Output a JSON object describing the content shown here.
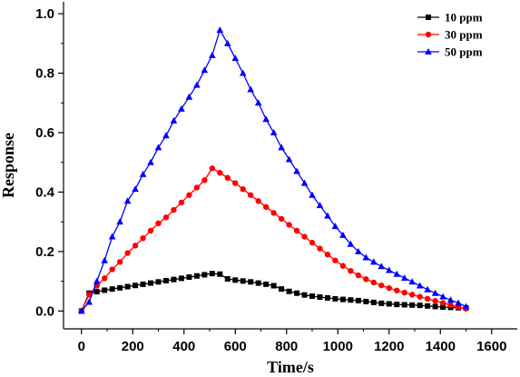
{
  "chart_data": {
    "type": "line",
    "title": "",
    "xlabel": "Time/s",
    "ylabel": "Response",
    "xlim": [
      -70,
      1700
    ],
    "ylim": [
      -0.06,
      1.04
    ],
    "x_ticks": [
      0,
      200,
      400,
      600,
      800,
      1000,
      1200,
      1400,
      1600
    ],
    "x_tick_labels": [
      "0",
      "200",
      "400",
      "600",
      "800",
      "1000",
      "1200",
      "1400",
      "1600"
    ],
    "y_ticks": [
      0.0,
      0.2,
      0.4,
      0.6,
      0.8,
      1.0
    ],
    "y_tick_labels": [
      "0.0",
      "0.2",
      "0.4",
      "0.6",
      "0.8",
      "1.0"
    ],
    "grid": false,
    "legend_position": "top-right",
    "series": [
      {
        "name": "10 ppm",
        "color": "#000000",
        "marker": "square",
        "points": [
          [
            0,
            0
          ],
          [
            30,
            0.06
          ],
          [
            60,
            0.065
          ],
          [
            90,
            0.07
          ],
          [
            120,
            0.074
          ],
          [
            150,
            0.078
          ],
          [
            180,
            0.082
          ],
          [
            210,
            0.086
          ],
          [
            240,
            0.09
          ],
          [
            270,
            0.094
          ],
          [
            300,
            0.098
          ],
          [
            330,
            0.102
          ],
          [
            360,
            0.106
          ],
          [
            390,
            0.11
          ],
          [
            420,
            0.114
          ],
          [
            450,
            0.118
          ],
          [
            480,
            0.122
          ],
          [
            510,
            0.126
          ],
          [
            540,
            0.124
          ],
          [
            570,
            0.108
          ],
          [
            600,
            0.104
          ],
          [
            630,
            0.101
          ],
          [
            660,
            0.098
          ],
          [
            690,
            0.094
          ],
          [
            720,
            0.09
          ],
          [
            750,
            0.085
          ],
          [
            780,
            0.074
          ],
          [
            810,
            0.066
          ],
          [
            840,
            0.06
          ],
          [
            870,
            0.054
          ],
          [
            900,
            0.05
          ],
          [
            930,
            0.047
          ],
          [
            960,
            0.044
          ],
          [
            990,
            0.041
          ],
          [
            1020,
            0.039
          ],
          [
            1050,
            0.037
          ],
          [
            1080,
            0.035
          ],
          [
            1110,
            0.032
          ],
          [
            1140,
            0.029
          ],
          [
            1170,
            0.026
          ],
          [
            1200,
            0.024
          ],
          [
            1230,
            0.022
          ],
          [
            1260,
            0.021
          ],
          [
            1290,
            0.02
          ],
          [
            1320,
            0.019
          ],
          [
            1350,
            0.017
          ],
          [
            1380,
            0.015
          ],
          [
            1410,
            0.013
          ],
          [
            1440,
            0.012
          ],
          [
            1470,
            0.011
          ],
          [
            1500,
            0.01
          ]
        ]
      },
      {
        "name": "30 ppm",
        "color": "#ff0000",
        "marker": "circle",
        "points": [
          [
            0,
            0
          ],
          [
            30,
            0.055
          ],
          [
            60,
            0.085
          ],
          [
            90,
            0.11
          ],
          [
            120,
            0.14
          ],
          [
            150,
            0.165
          ],
          [
            180,
            0.195
          ],
          [
            210,
            0.22
          ],
          [
            240,
            0.245
          ],
          [
            270,
            0.27
          ],
          [
            300,
            0.295
          ],
          [
            330,
            0.315
          ],
          [
            360,
            0.34
          ],
          [
            390,
            0.365
          ],
          [
            420,
            0.39
          ],
          [
            450,
            0.415
          ],
          [
            480,
            0.44
          ],
          [
            510,
            0.48
          ],
          [
            540,
            0.465
          ],
          [
            570,
            0.448
          ],
          [
            600,
            0.43
          ],
          [
            630,
            0.41
          ],
          [
            660,
            0.39
          ],
          [
            690,
            0.37
          ],
          [
            720,
            0.35
          ],
          [
            750,
            0.33
          ],
          [
            780,
            0.31
          ],
          [
            810,
            0.29
          ],
          [
            840,
            0.27
          ],
          [
            870,
            0.25
          ],
          [
            900,
            0.23
          ],
          [
            930,
            0.21
          ],
          [
            960,
            0.19
          ],
          [
            990,
            0.17
          ],
          [
            1020,
            0.152
          ],
          [
            1050,
            0.135
          ],
          [
            1080,
            0.12
          ],
          [
            1110,
            0.107
          ],
          [
            1140,
            0.096
          ],
          [
            1170,
            0.086
          ],
          [
            1200,
            0.077
          ],
          [
            1230,
            0.069
          ],
          [
            1260,
            0.062
          ],
          [
            1290,
            0.055
          ],
          [
            1320,
            0.048
          ],
          [
            1350,
            0.041
          ],
          [
            1380,
            0.034
          ],
          [
            1410,
            0.027
          ],
          [
            1440,
            0.02
          ],
          [
            1470,
            0.013
          ],
          [
            1500,
            0.008
          ]
        ]
      },
      {
        "name": "50 ppm",
        "color": "#0000ff",
        "marker": "triangle",
        "points": [
          [
            0,
            0
          ],
          [
            30,
            0.03
          ],
          [
            60,
            0.1
          ],
          [
            90,
            0.17
          ],
          [
            120,
            0.25
          ],
          [
            150,
            0.3
          ],
          [
            180,
            0.37
          ],
          [
            210,
            0.41
          ],
          [
            240,
            0.46
          ],
          [
            270,
            0.5
          ],
          [
            300,
            0.55
          ],
          [
            330,
            0.59
          ],
          [
            360,
            0.64
          ],
          [
            390,
            0.68
          ],
          [
            420,
            0.72
          ],
          [
            450,
            0.76
          ],
          [
            480,
            0.81
          ],
          [
            510,
            0.86
          ],
          [
            540,
            0.945
          ],
          [
            570,
            0.9
          ],
          [
            600,
            0.85
          ],
          [
            630,
            0.8
          ],
          [
            660,
            0.745
          ],
          [
            690,
            0.7
          ],
          [
            720,
            0.645
          ],
          [
            750,
            0.6
          ],
          [
            780,
            0.55
          ],
          [
            810,
            0.51
          ],
          [
            840,
            0.47
          ],
          [
            870,
            0.43
          ],
          [
            900,
            0.39
          ],
          [
            930,
            0.355
          ],
          [
            960,
            0.32
          ],
          [
            990,
            0.285
          ],
          [
            1020,
            0.255
          ],
          [
            1050,
            0.225
          ],
          [
            1080,
            0.2
          ],
          [
            1110,
            0.18
          ],
          [
            1140,
            0.165
          ],
          [
            1170,
            0.15
          ],
          [
            1200,
            0.137
          ],
          [
            1230,
            0.124
          ],
          [
            1260,
            0.111
          ],
          [
            1290,
            0.098
          ],
          [
            1320,
            0.085
          ],
          [
            1350,
            0.072
          ],
          [
            1380,
            0.06
          ],
          [
            1410,
            0.048
          ],
          [
            1440,
            0.037
          ],
          [
            1470,
            0.027
          ],
          [
            1500,
            0.015
          ]
        ]
      }
    ]
  }
}
